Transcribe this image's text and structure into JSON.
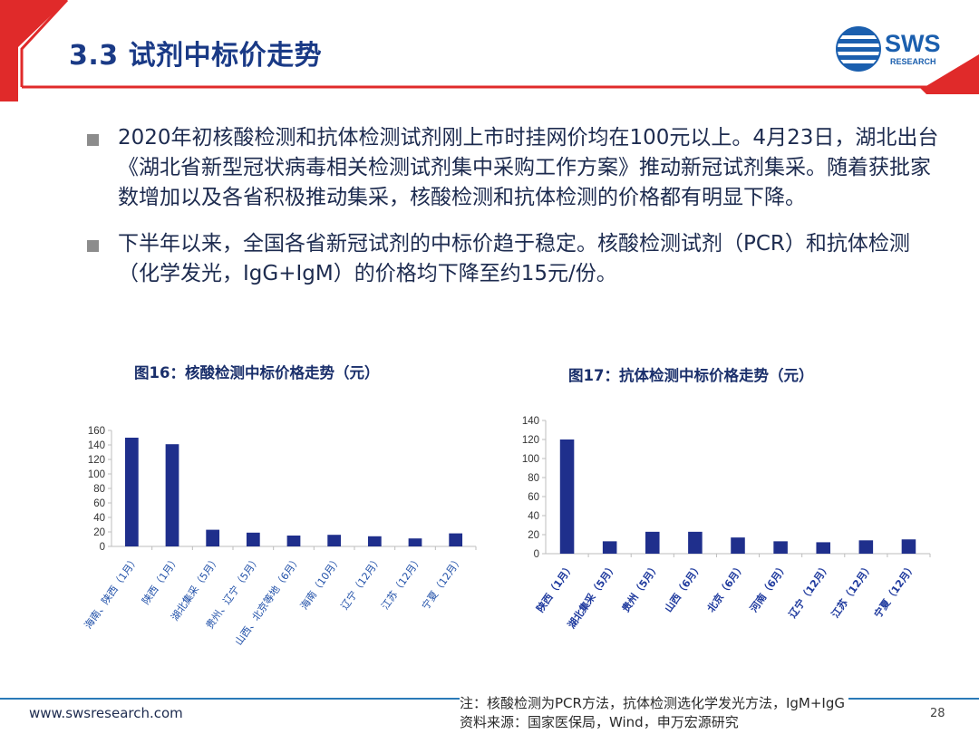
{
  "header": {
    "title": "3.3 试剂中标价走势",
    "logo_text": "SWS",
    "logo_sub": "RESEARCH",
    "colors": {
      "accent_red": "#e02a2a",
      "title_blue": "#1a3a86",
      "logo_blue": "#1b5fae"
    }
  },
  "bullets": [
    {
      "text": "2020年初核酸检测和抗体检测试剂刚上市时挂网价均在100元以上。4月23日，湖北出台《湖北省新型冠状病毒相关检测试剂集中采购工作方案》推动新冠试剂集采。随着获批家数增加以及各省积极推动集采，核酸检测和抗体检测的价格都有明显下降。"
    },
    {
      "text": "下半年以来，全国各省新冠试剂的中标价趋于稳定。核酸检测试剂（PCR）和抗体检测（化学发光，IgG+IgM）的价格均下降至约15元/份。"
    }
  ],
  "chart_data": [
    {
      "type": "bar",
      "title": "图16：核酸检测中标价格走势（元）",
      "categories": [
        "海南、陕西（1月）",
        "陕西（1月）",
        "湖北集采（5月）",
        "贵州、辽宁（5月）",
        "山西、北京等地（6月）",
        "海南（10月）",
        "辽宁（12月）",
        "江苏（12月）",
        "宁夏（12月）"
      ],
      "values": [
        150,
        141,
        23,
        19,
        15,
        16,
        14,
        11,
        18
      ],
      "ylim": [
        0,
        160
      ],
      "yticks": [
        "0",
        "20",
        "40",
        "60",
        "80",
        "100",
        "120",
        "140",
        "160"
      ],
      "grid": false,
      "bar_color": "#1f2f8c",
      "tick_label_color": "#1f4fa8",
      "tick_label_bold": false
    },
    {
      "type": "bar",
      "title": "图17：抗体检测中标价格走势（元）",
      "categories": [
        "陕西（1月）",
        "湖北集采（5月）",
        "贵州（5月）",
        "山西（6月）",
        "北京（6月）",
        "河南（6月）",
        "辽宁（12月）",
        "江苏（12月）",
        "宁夏（12月）"
      ],
      "values": [
        120,
        13,
        23,
        23,
        17,
        13,
        12,
        14,
        15
      ],
      "ylim": [
        0,
        140
      ],
      "yticks": [
        "0",
        "20",
        "40",
        "60",
        "80",
        "100",
        "120",
        "140"
      ],
      "grid": false,
      "bar_color": "#1f2f8c",
      "tick_label_color": "#1f3a9e",
      "tick_label_bold": true
    }
  ],
  "footer": {
    "url": "www.swsresearch.com",
    "note": "注：核酸检测为PCR方法，抗体检测选化学发光方法，IgM+IgG",
    "source": "资料来源：国家医保局，Wind，申万宏源研究",
    "page": "28"
  }
}
